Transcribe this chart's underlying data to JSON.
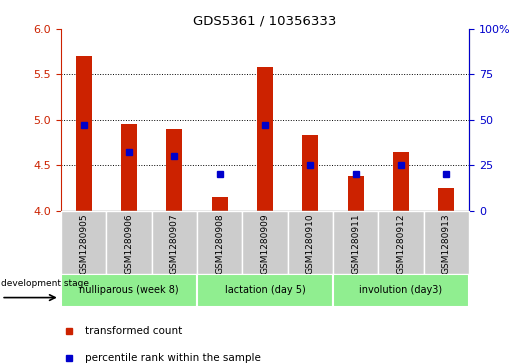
{
  "title": "GDS5361 / 10356333",
  "samples": [
    "GSM1280905",
    "GSM1280906",
    "GSM1280907",
    "GSM1280908",
    "GSM1280909",
    "GSM1280910",
    "GSM1280911",
    "GSM1280912",
    "GSM1280913"
  ],
  "transformed_counts": [
    5.7,
    4.95,
    4.9,
    4.15,
    5.58,
    4.83,
    4.38,
    4.65,
    4.25
  ],
  "percentile_ranks": [
    47,
    32,
    30,
    20,
    47,
    25,
    20,
    25,
    20
  ],
  "ylim_left": [
    4.0,
    6.0
  ],
  "ylim_right": [
    0,
    100
  ],
  "yticks_left": [
    4.0,
    4.5,
    5.0,
    5.5,
    6.0
  ],
  "yticks_right": [
    0,
    25,
    50,
    75,
    100
  ],
  "bar_color": "#cc2200",
  "marker_color": "#0000cc",
  "bar_bottom": 4.0,
  "groups": [
    {
      "label": "nulliparous (week 8)",
      "start": 0,
      "end": 3
    },
    {
      "label": "lactation (day 5)",
      "start": 3,
      "end": 6
    },
    {
      "label": "involution (day3)",
      "start": 6,
      "end": 9
    }
  ],
  "group_color": "#90ee90",
  "sample_box_color": "#cccccc",
  "stage_label": "development stage",
  "legend_items": [
    {
      "label": "transformed count",
      "color": "#cc2200"
    },
    {
      "label": "percentile rank within the sample",
      "color": "#0000cc"
    }
  ],
  "tick_label_color_left": "#cc2200",
  "tick_label_color_right": "#0000cc"
}
